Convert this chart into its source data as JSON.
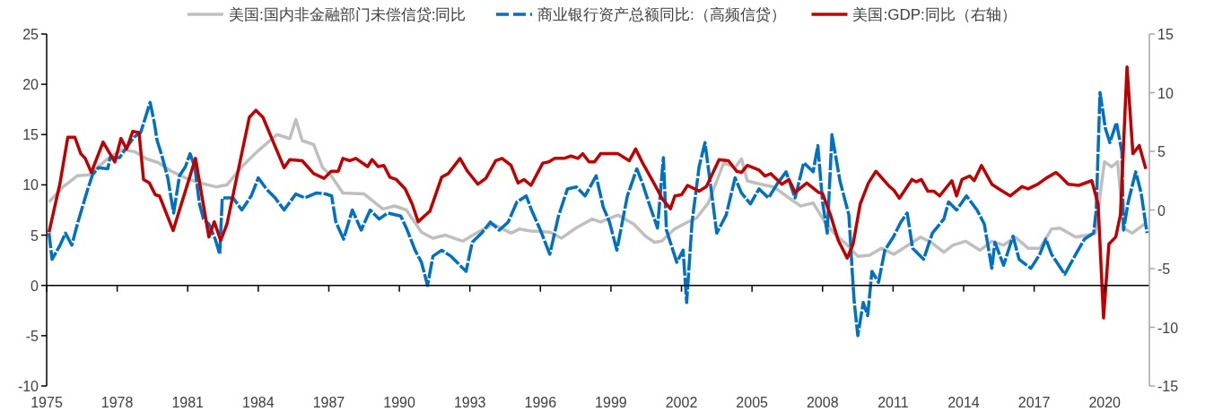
{
  "chart_data": {
    "type": "line",
    "xlim": [
      1975,
      2021.9
    ],
    "xticks": [
      1975,
      1978,
      1981,
      1984,
      1987,
      1990,
      1993,
      1996,
      1999,
      2002,
      2005,
      2008,
      2011,
      2014,
      2017,
      2020
    ],
    "ylim": [
      -10,
      25
    ],
    "yticks": [
      -10,
      -5,
      0,
      5,
      10,
      15,
      20,
      25
    ],
    "y2lim": [
      -15,
      15
    ],
    "y2ticks": [
      -15,
      -10,
      -5,
      0,
      5,
      10,
      15
    ],
    "legend": "top",
    "series": [
      {
        "name": "美国:国内非金融部门未偿信贷:同比",
        "color": "#bfbfbf",
        "line_style": "solid",
        "x": [
          1975.1,
          1975.7,
          1976.3,
          1976.8,
          1977.6,
          1978.2,
          1978.74,
          1979.24,
          1979.76,
          1980.27,
          1980.9,
          1981.5,
          1982.2,
          1982.67,
          1983.3,
          1983.95,
          1984.8,
          1985.34,
          1985.6,
          1985.87,
          1986.36,
          1986.74,
          1987.1,
          1987.6,
          1988.5,
          1989.3,
          1989.8,
          1990.3,
          1990.94,
          1991.43,
          1991.96,
          1992.7,
          1993.34,
          1994.0,
          1994.75,
          1995.1,
          1995.6,
          1996.4,
          1996.9,
          1997.5,
          1998.2,
          1998.56,
          1999.3,
          1999.97,
          2000.47,
          2000.85,
          2001.16,
          2001.7,
          2002.26,
          2002.64,
          2003.14,
          2003.8,
          2004.28,
          2004.55,
          2004.8,
          2005.3,
          2005.92,
          2006.57,
          2007.07,
          2007.6,
          2008.1,
          2008.6,
          2008.97,
          2009.5,
          2010.0,
          2010.5,
          2011.03,
          2011.64,
          2012.17,
          2012.67,
          2013.16,
          2013.54,
          2014.08,
          2014.7,
          2015.2,
          2015.7,
          2016.2,
          2016.74,
          2017.24,
          2017.74,
          2018.1,
          2018.77,
          2019.26,
          2019.6,
          2019.8,
          2019.99,
          2020.3,
          2020.55,
          2020.8,
          2021.17,
          2021.75
        ],
        "values": [
          8.3,
          9.8,
          10.9,
          11.0,
          12.6,
          13.5,
          13.3,
          12.6,
          12.2,
          11.4,
          10.7,
          10.2,
          9.8,
          10.0,
          11.8,
          13.3,
          15.0,
          14.6,
          16.5,
          14.4,
          14.0,
          11.7,
          10.9,
          9.2,
          9.1,
          7.6,
          7.9,
          7.5,
          5.3,
          4.7,
          5.0,
          4.4,
          5.3,
          6.1,
          5.2,
          5.6,
          5.4,
          5.3,
          4.7,
          5.7,
          6.6,
          6.3,
          7.0,
          6.1,
          4.9,
          4.3,
          4.4,
          5.6,
          6.3,
          6.7,
          8.2,
          12.2,
          11.7,
          12.6,
          10.4,
          10.1,
          9.8,
          8.7,
          7.9,
          8.2,
          6.3,
          4.9,
          4.2,
          2.9,
          3.0,
          3.7,
          3.1,
          4.0,
          4.8,
          4.2,
          3.3,
          4.0,
          4.4,
          3.5,
          4.4,
          4.0,
          4.8,
          3.7,
          3.7,
          5.6,
          5.7,
          4.8,
          5.0,
          5.2,
          8.9,
          12.3,
          11.8,
          12.3,
          5.7,
          5.2,
          6.2
        ]
      },
      {
        "name": "商业银行资产总额同比:（高频信贷）",
        "color": "#0070c0",
        "line_style": "dashed",
        "x": [
          1975.1,
          1975.23,
          1975.57,
          1975.8,
          1976.07,
          1976.33,
          1976.56,
          1976.75,
          1976.95,
          1977.2,
          1977.6,
          1977.7,
          1978.1,
          1978.36,
          1978.74,
          1979.0,
          1979.4,
          1979.57,
          1979.7,
          1979.9,
          1980.15,
          1980.4,
          1980.65,
          1980.9,
          1981.1,
          1981.3,
          1981.5,
          1981.67,
          1981.9,
          1982.17,
          1982.36,
          1982.47,
          1982.93,
          1983.3,
          1983.7,
          1984.0,
          1984.34,
          1984.72,
          1985.1,
          1985.6,
          1985.98,
          1986.48,
          1986.86,
          1987.12,
          1987.3,
          1987.63,
          1988.0,
          1988.38,
          1988.76,
          1989.14,
          1989.5,
          1990.06,
          1990.3,
          1990.67,
          1990.94,
          1991.2,
          1991.43,
          1991.8,
          1992.2,
          1992.58,
          1992.84,
          1993.1,
          1993.5,
          1993.87,
          1994.25,
          1994.63,
          1995.0,
          1995.4,
          1995.62,
          1996.0,
          1996.4,
          1996.77,
          1997.15,
          1997.53,
          1997.9,
          1998.37,
          1998.67,
          1998.94,
          1999.25,
          1999.7,
          2000.1,
          2000.35,
          2000.6,
          2000.98,
          2001.23,
          2001.36,
          2001.8,
          2002.07,
          2002.22,
          2002.45,
          2002.75,
          2003.0,
          2003.33,
          2003.5,
          2003.9,
          2004.28,
          2004.55,
          2004.93,
          2005.3,
          2005.7,
          2006.07,
          2006.45,
          2006.83,
          2007.2,
          2007.6,
          2007.8,
          2008.0,
          2008.2,
          2008.4,
          2008.74,
          2009.12,
          2009.27,
          2009.35,
          2009.5,
          2009.73,
          2009.92,
          2010.1,
          2010.38,
          2010.65,
          2011.03,
          2011.33,
          2011.6,
          2011.83,
          2012.3,
          2012.67,
          2013.16,
          2013.36,
          2013.7,
          2014.12,
          2014.57,
          2014.88,
          2015.2,
          2015.33,
          2015.7,
          2016.1,
          2016.36,
          2016.86,
          2017.24,
          2017.5,
          2017.74,
          2018.3,
          2018.77,
          2019.14,
          2019.53,
          2019.64,
          2019.8,
          2020.03,
          2020.22,
          2020.5,
          2020.73,
          2020.8,
          2021.0,
          2021.32,
          2021.55,
          2021.8
        ],
        "values": [
          5.2,
          2.6,
          4.0,
          5.2,
          4.0,
          6.3,
          8.1,
          9.6,
          11.0,
          11.7,
          11.6,
          12.7,
          12.7,
          13.6,
          14.8,
          15.2,
          18.2,
          16.3,
          14.4,
          12.9,
          10.7,
          7.2,
          10.9,
          11.8,
          13.1,
          11.8,
          8.1,
          6.6,
          6.1,
          4.6,
          3.1,
          8.7,
          8.7,
          7.5,
          8.9,
          10.7,
          9.6,
          8.7,
          7.5,
          9.1,
          8.7,
          9.2,
          9.1,
          8.9,
          6.3,
          4.6,
          7.5,
          5.5,
          7.5,
          6.6,
          7.2,
          6.9,
          5.7,
          3.5,
          2.3,
          0.0,
          2.9,
          3.5,
          2.9,
          2.0,
          1.4,
          4.3,
          5.2,
          6.3,
          5.5,
          6.3,
          8.3,
          8.9,
          7.5,
          5.5,
          3.1,
          6.9,
          9.6,
          9.8,
          8.9,
          10.9,
          7.8,
          6.3,
          3.5,
          8.9,
          11.6,
          10.1,
          8.3,
          5.7,
          12.7,
          5.5,
          2.3,
          3.5,
          -1.7,
          6.3,
          11.8,
          14.2,
          8.3,
          5.2,
          7.0,
          10.7,
          9.2,
          8.1,
          9.6,
          8.7,
          10.1,
          11.3,
          8.7,
          12.2,
          11.3,
          13.9,
          8.3,
          5.2,
          15.0,
          10.4,
          7.0,
          1.1,
          -1.7,
          -5.0,
          -1.7,
          -3.0,
          1.4,
          0.3,
          3.5,
          4.9,
          6.3,
          7.2,
          3.7,
          2.6,
          5.2,
          6.6,
          8.3,
          7.5,
          8.9,
          7.5,
          6.1,
          1.7,
          4.3,
          2.0,
          4.9,
          2.6,
          1.7,
          3.1,
          4.6,
          3.1,
          1.1,
          3.1,
          4.6,
          5.2,
          7.5,
          19.2,
          15.6,
          14.2,
          16.2,
          13.3,
          5.5,
          8.3,
          11.3,
          9.2,
          5.2
        ]
      },
      {
        "name": "美国:GDP:同比（右轴）",
        "color": "#c00000",
        "line_style": "solid",
        "axis": "y2",
        "x": [
          1975.1,
          1975.56,
          1975.9,
          1976.2,
          1976.45,
          1976.64,
          1976.9,
          1977.4,
          1977.9,
          1978.16,
          1978.4,
          1978.66,
          1978.93,
          1979.12,
          1979.37,
          1979.62,
          1979.8,
          1980.38,
          1981.33,
          1981.9,
          1982.13,
          1982.4,
          1982.67,
          1983.62,
          1983.9,
          1984.2,
          1984.7,
          1985.1,
          1985.34,
          1985.87,
          1986.36,
          1986.8,
          1987.1,
          1987.4,
          1987.6,
          1987.9,
          1988.15,
          1988.65,
          1988.84,
          1989.1,
          1989.34,
          1989.6,
          1989.87,
          1990.25,
          1990.55,
          1990.8,
          1991.3,
          1991.8,
          1992.08,
          1992.58,
          1992.9,
          1993.34,
          1993.68,
          1994.1,
          1994.37,
          1994.75,
          1995.05,
          1995.3,
          1995.6,
          1996.1,
          1996.36,
          1996.6,
          1997.0,
          1997.3,
          1997.6,
          1997.8,
          1998.07,
          1998.3,
          1998.56,
          1999.3,
          1999.78,
          2000.05,
          2000.35,
          2000.85,
          2001.2,
          2001.53,
          2001.72,
          2002.0,
          2002.26,
          2002.75,
          2003.06,
          2003.6,
          2004.0,
          2004.35,
          2004.55,
          2004.8,
          2005.3,
          2005.55,
          2005.8,
          2006.27,
          2006.57,
          2006.83,
          2007.33,
          2007.83,
          2008.0,
          2008.35,
          2008.67,
          2009.05,
          2009.3,
          2009.6,
          2009.95,
          2010.27,
          2010.85,
          2011.03,
          2011.27,
          2011.8,
          2011.98,
          2012.2,
          2012.48,
          2012.74,
          2012.98,
          2013.5,
          2013.7,
          2013.93,
          2014.26,
          2014.45,
          2014.76,
          2015.2,
          2015.5,
          2015.98,
          2016.48,
          2016.74,
          2017.16,
          2017.5,
          2017.93,
          2018.1,
          2018.45,
          2018.9,
          2019.45,
          2019.72,
          2019.95,
          2020.18,
          2020.47,
          2020.67,
          2020.95,
          2021.2,
          2021.47,
          2021.75
        ],
        "values": [
          -1.9,
          2.2,
          6.2,
          6.2,
          4.8,
          4.4,
          3.2,
          5.8,
          4.1,
          6.1,
          5.2,
          6.7,
          6.6,
          2.6,
          2.3,
          1.3,
          1.2,
          -1.75,
          4.4,
          -2.3,
          -1.0,
          -2.6,
          -1.2,
          7.9,
          8.5,
          7.9,
          5.5,
          3.6,
          4.3,
          4.2,
          3.1,
          2.7,
          3.3,
          3.3,
          4.4,
          4.2,
          4.4,
          3.7,
          4.3,
          3.7,
          3.8,
          2.8,
          2.6,
          1.8,
          0.5,
          -1.0,
          -0.1,
          2.8,
          3.1,
          4.4,
          3.3,
          2.2,
          2.7,
          4.2,
          4.4,
          3.8,
          2.3,
          2.6,
          2.1,
          4.0,
          4.1,
          4.4,
          4.4,
          4.6,
          4.4,
          4.8,
          4.1,
          4.1,
          4.8,
          4.8,
          4.2,
          5.2,
          4.0,
          2.2,
          0.9,
          0.1,
          1.2,
          1.3,
          2.1,
          1.6,
          2.0,
          4.3,
          4.2,
          3.3,
          3.2,
          3.8,
          3.4,
          2.9,
          3.1,
          2.2,
          2.6,
          1.5,
          2.3,
          1.5,
          1.4,
          -0.5,
          -2.6,
          -4.1,
          -2.9,
          0.5,
          2.3,
          3.3,
          2.0,
          1.7,
          1.0,
          2.6,
          2.4,
          2.6,
          1.6,
          1.6,
          1.2,
          2.5,
          1.2,
          2.6,
          2.9,
          2.5,
          3.8,
          2.2,
          1.8,
          1.2,
          2.0,
          1.8,
          2.2,
          2.7,
          3.2,
          2.9,
          2.2,
          2.1,
          2.5,
          0.5,
          -9.2,
          -2.9,
          -2.3,
          -0.4,
          12.2,
          4.8,
          5.5,
          3.5
        ]
      }
    ]
  }
}
